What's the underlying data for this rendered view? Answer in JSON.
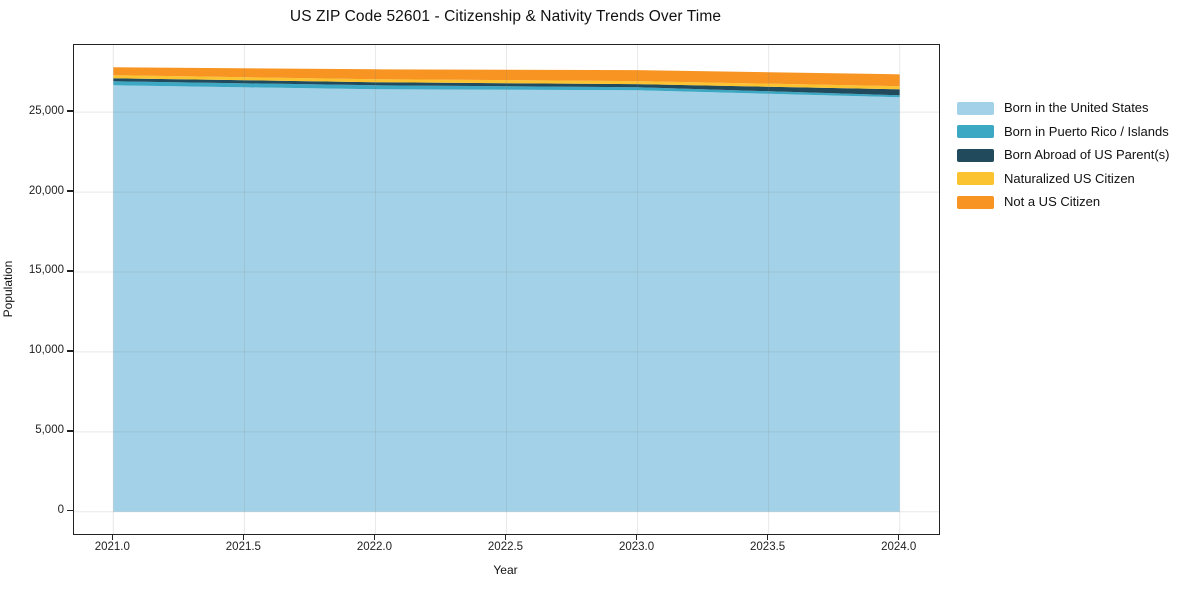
{
  "figure": {
    "title": "US ZIP Code 52601 - Citizenship & Nativity Trends Over Time",
    "background_color": "#ffffff",
    "spine_color": "#222222"
  },
  "chart_data": {
    "type": "area",
    "stacked": true,
    "title": "US ZIP Code 52601 - Citizenship & Nativity Trends Over Time",
    "xlabel": "Year",
    "ylabel": "Population",
    "x": [
      2021,
      2022,
      2023,
      2024
    ],
    "series": [
      {
        "name": "Born in the United States",
        "color": "#a3d2e8",
        "values": [
          26680,
          26430,
          26370,
          25930
        ]
      },
      {
        "name": "Born in Puerto Rico / Islands",
        "color": "#3da8c4",
        "values": [
          250,
          250,
          190,
          125
        ]
      },
      {
        "name": "Born Abroad of US Parent(s)",
        "color": "#214b5c",
        "values": [
          190,
          190,
          190,
          375
        ]
      },
      {
        "name": "Naturalized US Citizen",
        "color": "#fcc330",
        "values": [
          190,
          190,
          190,
          190
        ]
      },
      {
        "name": "Not a US Citizen",
        "color": "#f79422",
        "values": [
          500,
          620,
          685,
          745
        ]
      }
    ],
    "xlim": [
      2020.85,
      2024.15
    ],
    "ylim": [
      -1390,
      29200
    ],
    "x_ticks": {
      "values": [
        2021.0,
        2021.5,
        2022.0,
        2022.5,
        2023.0,
        2023.5,
        2024.0
      ],
      "labels": [
        "2021.0",
        "2021.5",
        "2022.0",
        "2022.5",
        "2023.0",
        "2023.5",
        "2024.0"
      ]
    },
    "y_ticks": {
      "values": [
        0,
        5000,
        10000,
        15000,
        20000,
        25000
      ],
      "labels": [
        "0",
        "5,000",
        "10,000",
        "15,000",
        "20,000",
        "25,000"
      ]
    },
    "grid": true,
    "grid_color": "rgba(130,130,130,0.18)",
    "legend_position": "right-outside"
  }
}
